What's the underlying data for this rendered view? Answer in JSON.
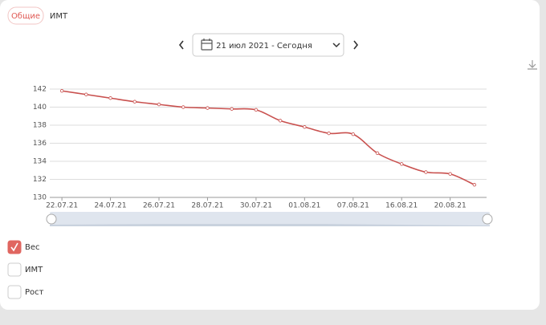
{
  "tabs": [
    "Общие",
    "ИМТ"
  ],
  "date_range": "21 июл 2021 - Сегодня",
  "chart_data": {
    "type": "line",
    "categories": [
      "22.07.21",
      null,
      "24.07.21",
      null,
      "26.07.21",
      null,
      "28.07.21",
      null,
      "30.07.21",
      null,
      "01.08.21",
      null,
      "07.08.21",
      null,
      "16.08.21",
      null,
      "20.08.21",
      null
    ],
    "values": [
      141.8,
      141.4,
      141.0,
      140.6,
      140.3,
      140.0,
      139.9,
      139.8,
      139.7,
      138.5,
      137.8,
      137.1,
      137.0,
      134.9,
      133.7,
      132.8,
      132.6,
      131.4
    ],
    "color": "#c9514f",
    "ylim": [
      130,
      142
    ],
    "yticks": [
      130,
      132,
      134,
      136,
      138,
      140,
      142
    ],
    "grid": true
  },
  "series_toggles": [
    {
      "label": "Вес",
      "checked": true
    },
    {
      "label": "ИМТ",
      "checked": false
    },
    {
      "label": "Рост",
      "checked": false
    }
  ]
}
